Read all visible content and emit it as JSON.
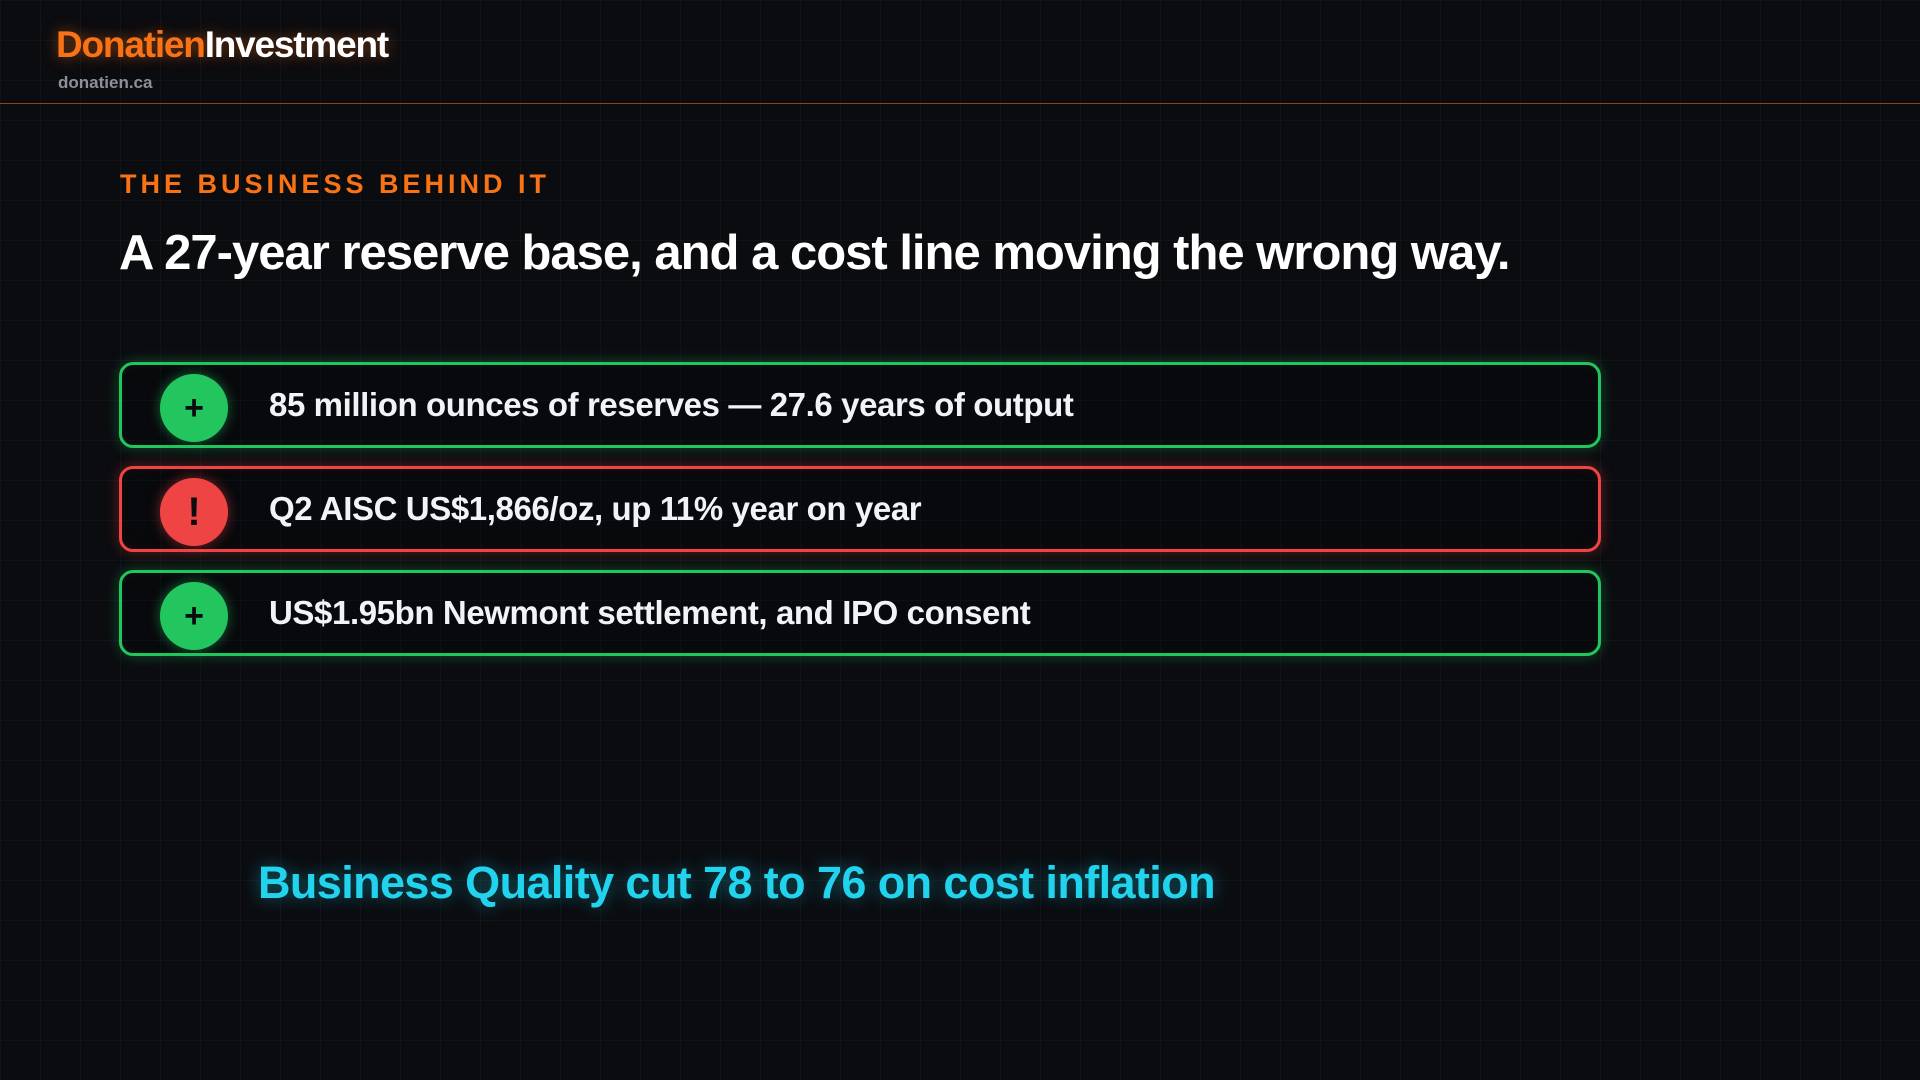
{
  "brand": {
    "name_primary": "Donatien",
    "name_secondary": "Investment",
    "site": "donatien.ca",
    "accent_color": "#f97316"
  },
  "slide": {
    "eyebrow": "THE BUSINESS BEHIND IT",
    "title": "A 27-year reserve base, and a cost line moving the wrong way."
  },
  "points": [
    {
      "sign": "+",
      "text": "85 million ounces of reserves — 27.6 years of output",
      "tone": "positive",
      "color": "#22c55e",
      "icon": "plus-icon"
    },
    {
      "sign": "!",
      "text": "Q2 AISC US$1,866/oz, up 11% year on year",
      "tone": "negative",
      "color": "#ef4444",
      "icon": "exclamation-icon"
    },
    {
      "sign": "+",
      "text": "US$1.95bn Newmont settlement, and IPO consent",
      "tone": "positive",
      "color": "#22c55e",
      "icon": "plus-icon"
    }
  ],
  "verdict": {
    "text": "Business Quality cut 78 to 76 on cost inflation",
    "color": "#22d3ee"
  }
}
